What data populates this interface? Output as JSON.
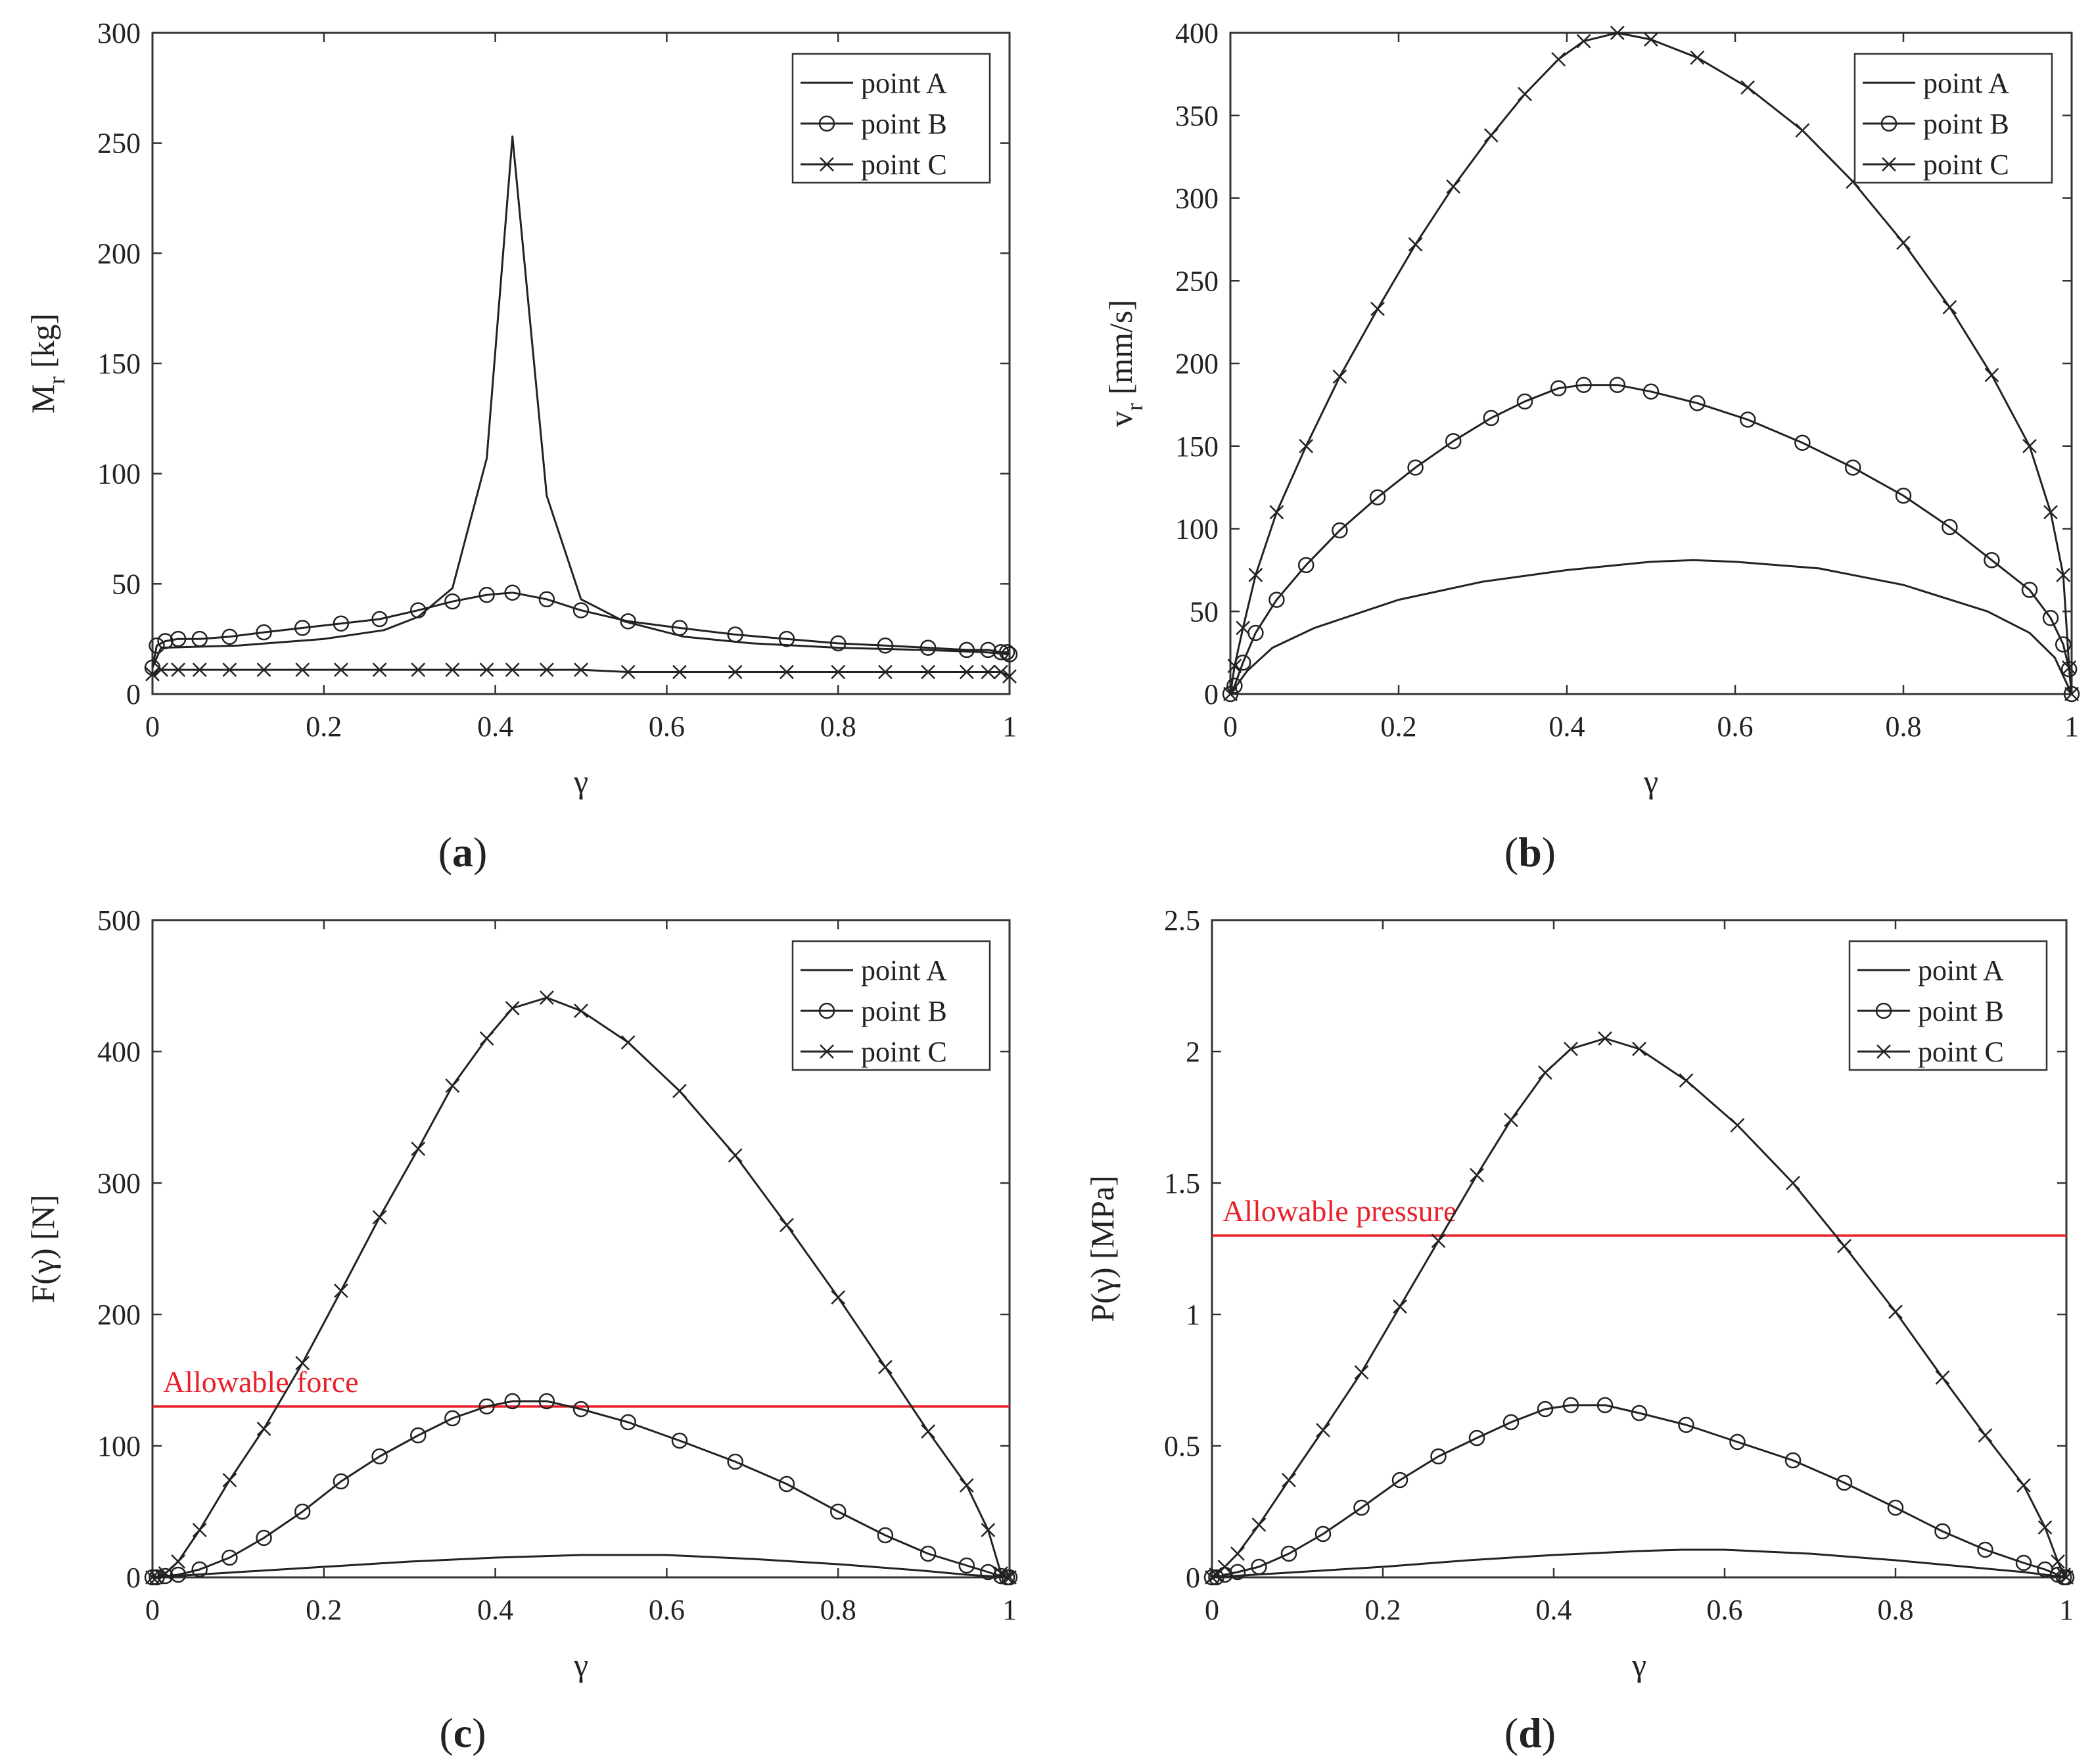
{
  "figure": {
    "panel_captions": [
      "a",
      "b",
      "c",
      "d"
    ]
  },
  "chart_data": [
    {
      "type": "line",
      "caption": "a",
      "xlabel": "γ",
      "ylabel": "M",
      "ylabel_sub": "r",
      "ylabel_unit": " [kg]",
      "xlim": [
        0,
        1
      ],
      "ylim": [
        0,
        300
      ],
      "xticks": [
        0,
        0.2,
        0.4,
        0.6,
        0.8,
        1
      ],
      "xtick_labels": [
        "0",
        "0.2",
        "0.4",
        "0.6",
        "0.8",
        "1"
      ],
      "yticks": [
        0,
        50,
        100,
        150,
        200,
        250,
        300
      ],
      "ytick_labels": [
        "0",
        "50",
        "100",
        "150",
        "200",
        "250",
        "300"
      ],
      "legend_position": "top-right",
      "series": [
        {
          "name": "point A",
          "marker": "none",
          "x": [
            0,
            0.01,
            0.1,
            0.2,
            0.27,
            0.31,
            0.35,
            0.39,
            0.42,
            0.46,
            0.5,
            0.55,
            0.62,
            0.7,
            0.8,
            0.9,
            0.97,
            1
          ],
          "y": [
            12,
            21,
            22,
            25,
            29,
            35,
            48,
            107,
            253,
            90,
            43,
            33,
            26,
            23,
            21,
            20,
            19,
            18
          ]
        },
        {
          "name": "point B",
          "marker": "circle",
          "x": [
            0,
            0.005,
            0.015,
            0.03,
            0.055,
            0.09,
            0.13,
            0.175,
            0.22,
            0.265,
            0.31,
            0.35,
            0.39,
            0.42,
            0.46,
            0.5,
            0.555,
            0.615,
            0.68,
            0.74,
            0.8,
            0.855,
            0.905,
            0.95,
            0.975,
            0.99,
            0.997,
            1
          ],
          "y": [
            12,
            22,
            24,
            25,
            25,
            26,
            28,
            30,
            32,
            34,
            38,
            42,
            45,
            46,
            43,
            38,
            33,
            30,
            27,
            25,
            23,
            22,
            21,
            20,
            20,
            19,
            19,
            18
          ]
        },
        {
          "name": "point C",
          "marker": "cross",
          "x": [
            0,
            0.01,
            0.03,
            0.055,
            0.09,
            0.13,
            0.175,
            0.22,
            0.265,
            0.31,
            0.35,
            0.39,
            0.42,
            0.46,
            0.5,
            0.555,
            0.615,
            0.68,
            0.74,
            0.8,
            0.855,
            0.905,
            0.95,
            0.975,
            0.99,
            1
          ],
          "y": [
            9,
            11,
            11,
            11,
            11,
            11,
            11,
            11,
            11,
            11,
            11,
            11,
            11,
            11,
            11,
            10,
            10,
            10,
            10,
            10,
            10,
            10,
            10,
            10,
            10,
            8
          ]
        }
      ]
    },
    {
      "type": "line",
      "caption": "b",
      "xlabel": "γ",
      "ylabel": "v",
      "ylabel_sub": "r",
      "ylabel_unit": " [mm/s]",
      "xlim": [
        0,
        1
      ],
      "ylim": [
        0,
        400
      ],
      "xticks": [
        0,
        0.2,
        0.4,
        0.6,
        0.8,
        1
      ],
      "xtick_labels": [
        "0",
        "0.2",
        "0.4",
        "0.6",
        "0.8",
        "1"
      ],
      "yticks": [
        0,
        50,
        100,
        150,
        200,
        250,
        300,
        350,
        400
      ],
      "ytick_labels": [
        "0",
        "50",
        "100",
        "150",
        "200",
        "250",
        "300",
        "350",
        "400"
      ],
      "legend_position": "top-right",
      "series": [
        {
          "name": "point A",
          "marker": "none",
          "x": [
            0,
            0.02,
            0.05,
            0.1,
            0.2,
            0.3,
            0.4,
            0.5,
            0.55,
            0.6,
            0.7,
            0.8,
            0.9,
            0.95,
            0.98,
            1
          ],
          "y": [
            0,
            14,
            28,
            40,
            57,
            68,
            75,
            80,
            81,
            80,
            76,
            66,
            50,
            37,
            22,
            0
          ]
        },
        {
          "name": "point B",
          "marker": "circle",
          "x": [
            0,
            0.005,
            0.015,
            0.03,
            0.055,
            0.09,
            0.13,
            0.175,
            0.22,
            0.265,
            0.31,
            0.35,
            0.39,
            0.42,
            0.46,
            0.5,
            0.555,
            0.615,
            0.68,
            0.74,
            0.8,
            0.855,
            0.905,
            0.95,
            0.975,
            0.99,
            0.997,
            1
          ],
          "y": [
            0,
            5,
            19,
            37,
            57,
            78,
            99,
            119,
            137,
            153,
            167,
            177,
            185,
            187,
            187,
            183,
            176,
            166,
            152,
            137,
            120,
            101,
            81,
            63,
            46,
            30,
            15,
            0
          ]
        },
        {
          "name": "point C",
          "marker": "cross",
          "x": [
            0,
            0.005,
            0.015,
            0.03,
            0.055,
            0.09,
            0.13,
            0.175,
            0.22,
            0.265,
            0.31,
            0.35,
            0.39,
            0.42,
            0.46,
            0.5,
            0.555,
            0.615,
            0.68,
            0.74,
            0.8,
            0.855,
            0.905,
            0.95,
            0.975,
            0.99,
            0.997,
            1
          ],
          "y": [
            0,
            17,
            40,
            72,
            110,
            150,
            192,
            233,
            272,
            307,
            338,
            363,
            384,
            395,
            400,
            396,
            385,
            367,
            341,
            310,
            273,
            234,
            193,
            150,
            110,
            72,
            16,
            0
          ]
        }
      ]
    },
    {
      "type": "line",
      "caption": "c",
      "xlabel": "γ",
      "ylabel": "F(γ) [N]",
      "xlim": [
        0,
        1
      ],
      "ylim": [
        0,
        500
      ],
      "xticks": [
        0,
        0.2,
        0.4,
        0.6,
        0.8,
        1
      ],
      "xtick_labels": [
        "0",
        "0.2",
        "0.4",
        "0.6",
        "0.8",
        "1"
      ],
      "yticks": [
        0,
        100,
        200,
        300,
        400,
        500
      ],
      "ytick_labels": [
        "0",
        "100",
        "200",
        "300",
        "400",
        "500"
      ],
      "legend_position": "top-right",
      "reference_line": {
        "label": "Allowable force",
        "y": 130,
        "color": "#e8202a"
      },
      "series": [
        {
          "name": "point A",
          "marker": "none",
          "x": [
            0,
            0.05,
            0.1,
            0.2,
            0.3,
            0.4,
            0.5,
            0.55,
            0.6,
            0.7,
            0.8,
            0.9,
            0.95,
            1
          ],
          "y": [
            0,
            2,
            4,
            8,
            12,
            15,
            17,
            17,
            17,
            14,
            10,
            5,
            2,
            0
          ]
        },
        {
          "name": "point B",
          "marker": "circle",
          "x": [
            0,
            0.005,
            0.015,
            0.03,
            0.055,
            0.09,
            0.13,
            0.175,
            0.22,
            0.265,
            0.31,
            0.35,
            0.39,
            0.42,
            0.46,
            0.5,
            0.555,
            0.615,
            0.68,
            0.74,
            0.8,
            0.855,
            0.905,
            0.95,
            0.975,
            0.99,
            0.997,
            1
          ],
          "y": [
            0,
            0,
            1,
            2,
            6,
            15,
            30,
            50,
            73,
            92,
            108,
            121,
            130,
            134,
            134,
            128,
            118,
            104,
            88,
            71,
            50,
            32,
            18,
            9,
            4,
            1,
            0,
            0
          ]
        },
        {
          "name": "point C",
          "marker": "cross",
          "x": [
            0,
            0.005,
            0.015,
            0.03,
            0.055,
            0.09,
            0.13,
            0.175,
            0.22,
            0.265,
            0.31,
            0.35,
            0.39,
            0.42,
            0.46,
            0.5,
            0.555,
            0.615,
            0.68,
            0.74,
            0.8,
            0.855,
            0.905,
            0.95,
            0.975,
            0.99,
            0.997,
            1
          ],
          "y": [
            0,
            0,
            3,
            12,
            36,
            74,
            113,
            163,
            218,
            274,
            326,
            374,
            410,
            433,
            441,
            431,
            407,
            370,
            321,
            268,
            213,
            160,
            111,
            70,
            36,
            3,
            0,
            0
          ]
        }
      ]
    },
    {
      "type": "line",
      "caption": "d",
      "xlabel": "γ",
      "ylabel": "P(γ) [MPa]",
      "xlim": [
        0,
        1
      ],
      "ylim": [
        0,
        2.5
      ],
      "xticks": [
        0,
        0.2,
        0.4,
        0.6,
        0.8,
        1
      ],
      "xtick_labels": [
        "0",
        "0.2",
        "0.4",
        "0.6",
        "0.8",
        "1"
      ],
      "yticks": [
        0,
        0.5,
        1,
        1.5,
        2,
        2.5
      ],
      "ytick_labels": [
        "0",
        "0.5",
        "1",
        "1.5",
        "2",
        "2.5"
      ],
      "legend_position": "top-right",
      "reference_line": {
        "label": "Allowable pressure",
        "y": 1.3,
        "color": "#e8202a"
      },
      "series": [
        {
          "name": "point A",
          "marker": "none",
          "x": [
            0,
            0.05,
            0.1,
            0.2,
            0.3,
            0.4,
            0.5,
            0.55,
            0.6,
            0.7,
            0.8,
            0.9,
            0.95,
            1
          ],
          "y": [
            0,
            0.01,
            0.02,
            0.04,
            0.065,
            0.085,
            0.1,
            0.105,
            0.105,
            0.09,
            0.065,
            0.035,
            0.02,
            0
          ]
        },
        {
          "name": "point B",
          "marker": "circle",
          "x": [
            0,
            0.005,
            0.015,
            0.03,
            0.055,
            0.09,
            0.13,
            0.175,
            0.22,
            0.265,
            0.31,
            0.35,
            0.39,
            0.42,
            0.46,
            0.5,
            0.555,
            0.615,
            0.68,
            0.74,
            0.8,
            0.855,
            0.905,
            0.95,
            0.975,
            0.99,
            0.997,
            1
          ],
          "y": [
            0,
            0,
            0.01,
            0.02,
            0.04,
            0.09,
            0.165,
            0.265,
            0.37,
            0.46,
            0.53,
            0.59,
            0.64,
            0.655,
            0.655,
            0.625,
            0.58,
            0.515,
            0.445,
            0.36,
            0.265,
            0.175,
            0.105,
            0.055,
            0.03,
            0.01,
            0,
            0
          ]
        },
        {
          "name": "point C",
          "marker": "cross",
          "x": [
            0,
            0.005,
            0.015,
            0.03,
            0.055,
            0.09,
            0.13,
            0.175,
            0.22,
            0.265,
            0.31,
            0.35,
            0.39,
            0.42,
            0.46,
            0.5,
            0.555,
            0.615,
            0.68,
            0.74,
            0.8,
            0.855,
            0.905,
            0.95,
            0.975,
            0.99,
            0.997,
            1
          ],
          "y": [
            0,
            0.01,
            0.04,
            0.09,
            0.2,
            0.37,
            0.56,
            0.78,
            1.03,
            1.28,
            1.53,
            1.74,
            1.92,
            2.01,
            2.05,
            2.01,
            1.89,
            1.72,
            1.5,
            1.26,
            1.01,
            0.76,
            0.54,
            0.35,
            0.19,
            0.06,
            0.01,
            0
          ]
        }
      ]
    }
  ]
}
